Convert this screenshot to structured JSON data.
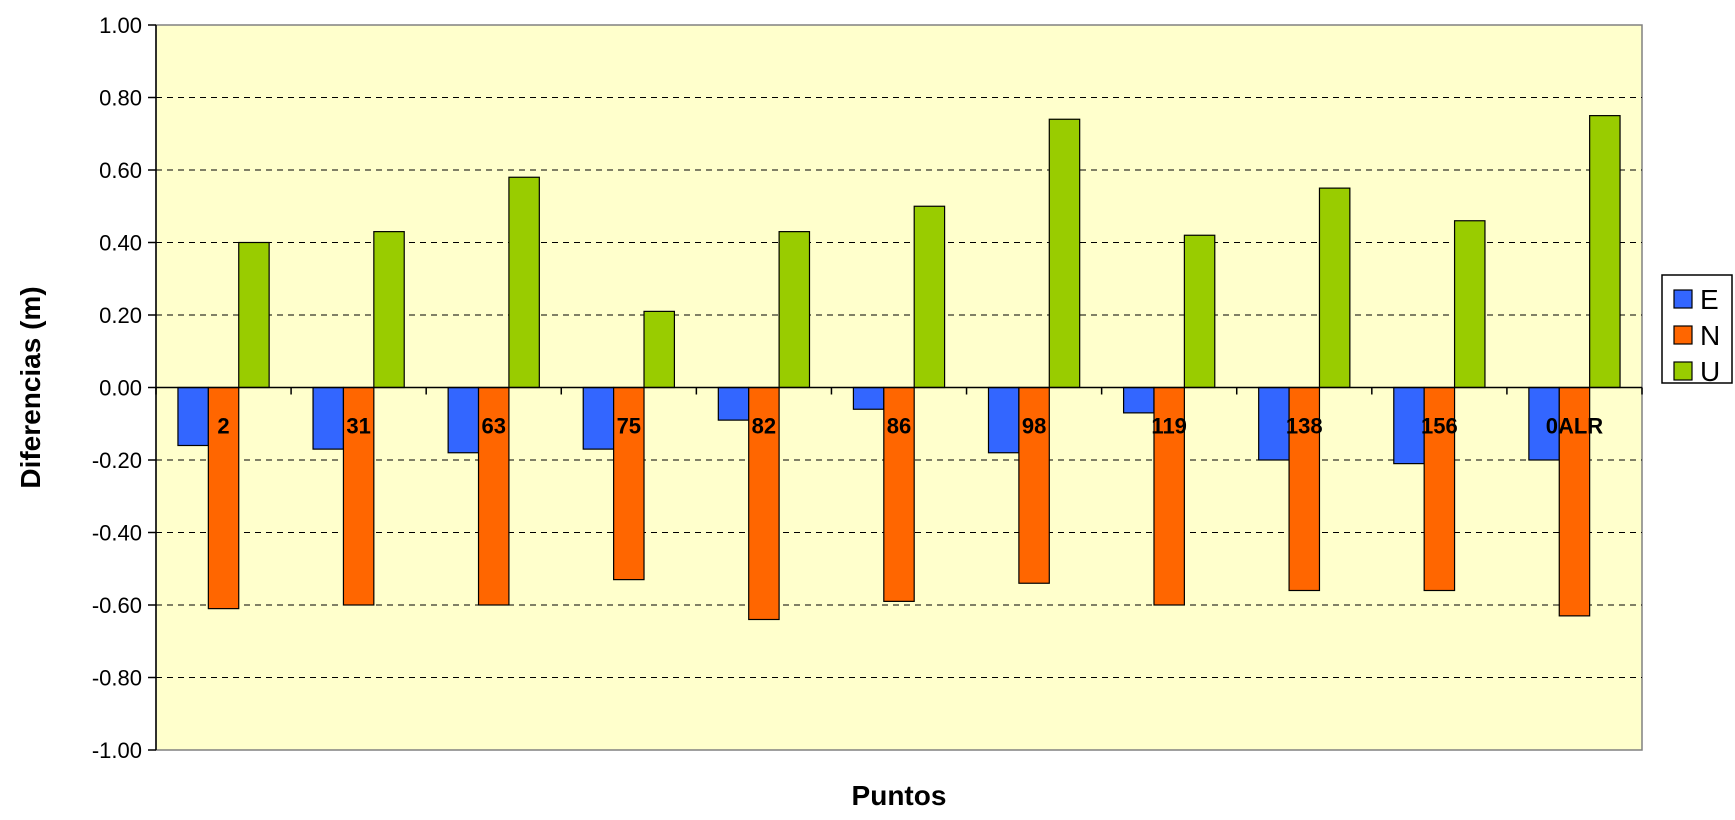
{
  "chart_data": {
    "type": "bar",
    "title": "",
    "xlabel": "Puntos",
    "ylabel": "Diferencias (m)",
    "ylim": [
      -1.0,
      1.0
    ],
    "yticks": [
      "1.00",
      "0.80",
      "0.60",
      "0.40",
      "0.20",
      "0.00",
      "-0.20",
      "-0.40",
      "-0.60",
      "-0.80",
      "-1.00"
    ],
    "grid": "horizontal dashed",
    "legend_position": "right",
    "categories": [
      "2",
      "31",
      "63",
      "75",
      "82",
      "86",
      "98",
      "119",
      "138",
      "156",
      "0ALR"
    ],
    "series": [
      {
        "name": "E",
        "color": "#3366ff",
        "values": [
          -0.16,
          -0.17,
          -0.18,
          -0.17,
          -0.09,
          -0.06,
          -0.18,
          -0.07,
          -0.2,
          -0.21,
          -0.2
        ]
      },
      {
        "name": "N",
        "color": "#ff6600",
        "values": [
          -0.61,
          -0.6,
          -0.6,
          -0.53,
          -0.64,
          -0.59,
          -0.54,
          -0.6,
          -0.56,
          -0.56,
          -0.63
        ]
      },
      {
        "name": "U",
        "color": "#99cc00",
        "values": [
          0.4,
          0.43,
          0.58,
          0.21,
          0.43,
          0.5,
          0.74,
          0.42,
          0.55,
          0.46,
          0.75
        ]
      }
    ],
    "plot_background": "#ffffcc"
  }
}
